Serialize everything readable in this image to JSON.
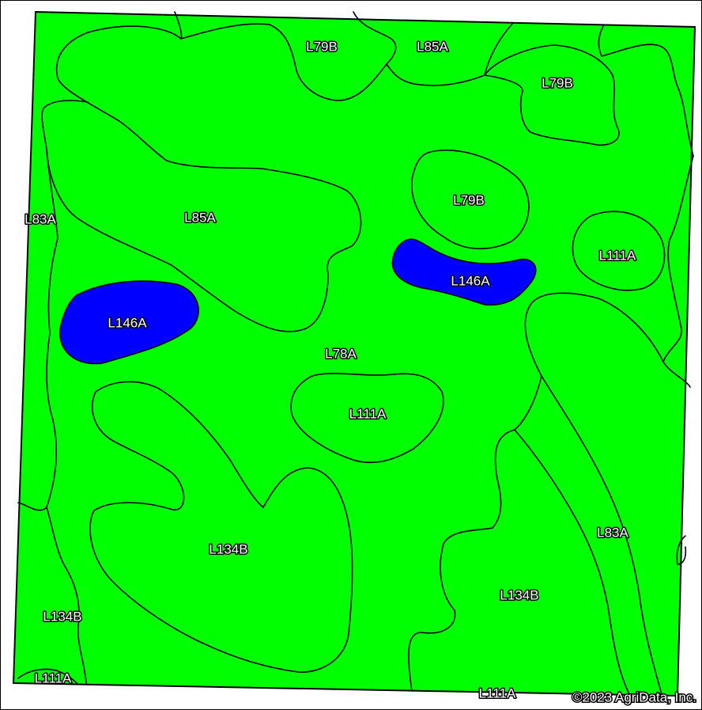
{
  "colors": {
    "land": "#00ff00",
    "water": "#0000ff",
    "boundary": "#000000",
    "background": "#ffffff"
  },
  "labels": [
    {
      "id": "l79b-top",
      "text": "L79B"
    },
    {
      "id": "l85a-top",
      "text": "L85A"
    },
    {
      "id": "l79b-top-right",
      "text": "L79B"
    },
    {
      "id": "l79b-center",
      "text": "L79B"
    },
    {
      "id": "l83a-left",
      "text": "L83A"
    },
    {
      "id": "l85a-left",
      "text": "L85A"
    },
    {
      "id": "l111a-right",
      "text": "L111A"
    },
    {
      "id": "l146a-center",
      "text": "L146A"
    },
    {
      "id": "l146a-left",
      "text": "L146A"
    },
    {
      "id": "l78a-center",
      "text": "L78A"
    },
    {
      "id": "l111a-center",
      "text": "L111A"
    },
    {
      "id": "l83a-right",
      "text": "L83A"
    },
    {
      "id": "l134b-center",
      "text": "L134B"
    },
    {
      "id": "l134b-right",
      "text": "L134B"
    },
    {
      "id": "l134b-left",
      "text": "L134B"
    },
    {
      "id": "l111a-bottom-left",
      "text": "L111A"
    },
    {
      "id": "l111a-bottom",
      "text": "L111A"
    }
  ],
  "copyright": "©2023 AgriData, Inc."
}
